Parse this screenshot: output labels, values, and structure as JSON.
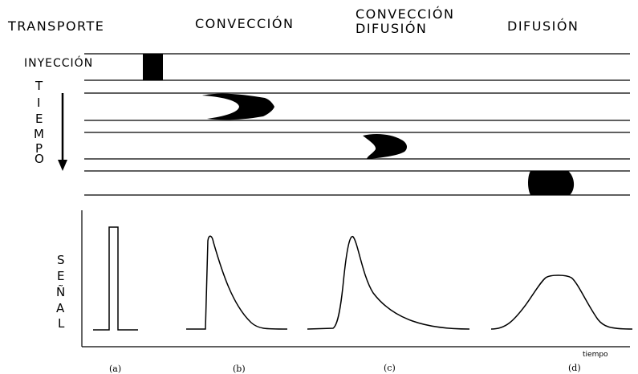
{
  "headers": {
    "transport": "TRANSPORTE",
    "convection": "CONVECCIÓN",
    "convection_diffusion_1": "CONVECCIÓN",
    "convection_diffusion_2": "DIFUSIÓN",
    "diffusion": "DIFUSIÓN"
  },
  "injection_label": "INYECCIÓN",
  "time_letters": [
    "T",
    "I",
    "E",
    "M",
    "P",
    "O"
  ],
  "signal_letters": [
    "S",
    "E",
    "Ñ",
    "A",
    "L"
  ],
  "panels": [
    "(a)",
    "(b)",
    "(c)",
    "(d)"
  ],
  "x_axis_label": "tiempo",
  "colors": {
    "ink": "#000000",
    "background": "#ffffff"
  }
}
